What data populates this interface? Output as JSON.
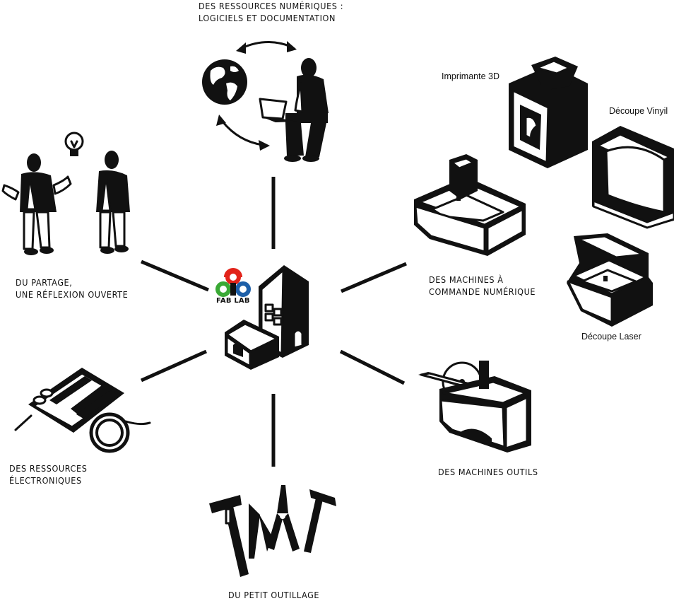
{
  "hub": {
    "logo_text": "FAB LAB"
  },
  "labels": {
    "resources_digital": [
      "DES RESSOURCES NUMÉRIQUES :",
      "LOGICIELS ET DOCUMENTATION"
    ],
    "sharing": [
      "DU PARTAGE,",
      "UNE RÉFLEXION OUVERTE"
    ],
    "cnc": [
      "DES MACHINES À",
      "COMMANDE NUMÉRIQUE"
    ],
    "electronics": [
      "DES RESSOURCES",
      "ÉLECTRONIQUES"
    ],
    "machine_tools": [
      "DES MACHINES OUTILS"
    ],
    "hand_tools": [
      "DU PETIT OUTILLAGE"
    ]
  },
  "machines": {
    "printer_3d": "Imprimante 3D",
    "vinyl_cutter": "Découpe Vinyil",
    "laser_cutter": "Découpe Laser"
  },
  "colors": {
    "ink": "#111111",
    "logo_red": "#e2231a",
    "logo_green": "#3aa935",
    "logo_blue": "#1d5fa8"
  },
  "icons": [
    "globe-icon",
    "laptop-user-icon",
    "sync-arrows-icon",
    "people-discussion-icon",
    "lightbulb-icon",
    "fablab-building-icon",
    "printer-3d-icon",
    "vinyl-cutter-icon",
    "cnc-mill-icon",
    "laser-cutter-icon",
    "table-saw-icon",
    "circuit-board-icon",
    "hand-tools-icon"
  ]
}
